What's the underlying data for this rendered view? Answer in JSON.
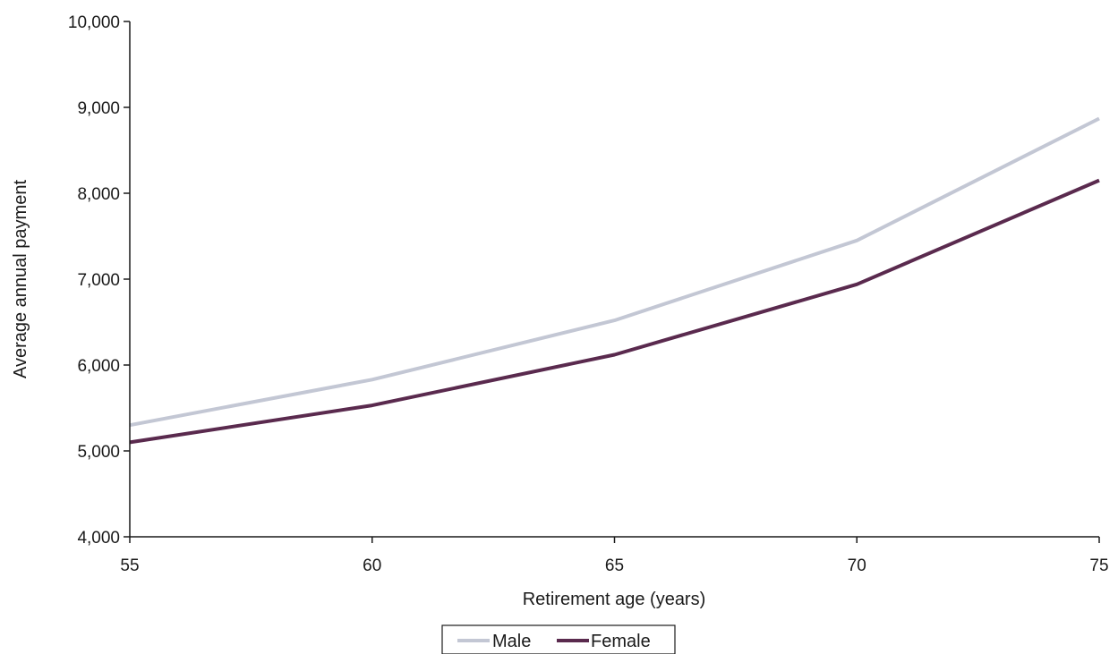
{
  "chart_data": {
    "type": "line",
    "title": "",
    "xlabel": "Retirement age (years)",
    "ylabel": "Average annual payment",
    "x": [
      55,
      60,
      65,
      70,
      75
    ],
    "x_tick_labels": [
      "55",
      "60",
      "65",
      "70",
      "75"
    ],
    "y_tick_labels": [
      "4,000",
      "5,000",
      "6,000",
      "7,000",
      "8,000",
      "9,000",
      "10,000"
    ],
    "y_ticks": [
      4000,
      5000,
      6000,
      7000,
      8000,
      9000,
      10000
    ],
    "xlim": [
      55,
      75
    ],
    "ylim": [
      4000,
      10000
    ],
    "grid": false,
    "legend_position": "bottom-center",
    "series": [
      {
        "name": "Male",
        "color": "#c3c7d4",
        "values": [
          5300,
          5830,
          6520,
          7450,
          8870
        ]
      },
      {
        "name": "Female",
        "color": "#5a2a4e",
        "values": [
          5100,
          5530,
          6120,
          6940,
          8150
        ]
      }
    ]
  }
}
